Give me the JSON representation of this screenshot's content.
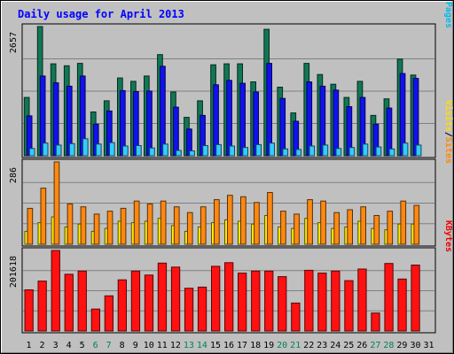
{
  "chart_data": {
    "type": "bar",
    "title": "Daily usage for April 2013",
    "categories": [
      "1",
      "2",
      "3",
      "4",
      "5",
      "6",
      "7",
      "8",
      "9",
      "10",
      "11",
      "12",
      "13",
      "14",
      "15",
      "16",
      "17",
      "18",
      "19",
      "20",
      "21",
      "22",
      "23",
      "24",
      "25",
      "26",
      "27",
      "28",
      "29",
      "30",
      "31"
    ],
    "weekend_days": [
      "6",
      "7",
      "13",
      "14",
      "20",
      "21",
      "27",
      "28"
    ],
    "panels": [
      {
        "id": "hits",
        "ymax_label": "2657",
        "ymax": 2657,
        "legend": [
          {
            "text": "Pages",
            "color": "#00bbee"
          },
          {
            "text": "Files",
            "color": "#0000ee"
          },
          {
            "text": "Hits",
            "color": "#007755"
          }
        ],
        "separator": "/",
        "series": [
          {
            "name": "Hits",
            "color": "#117755",
            "values": [
              1200,
              2657,
              1890,
              1850,
              1900,
              900,
              1130,
              1600,
              1530,
              1640,
              2080,
              1310,
              790,
              1130,
              1870,
              1890,
              1890,
              1520,
              2600,
              1410,
              880,
              1900,
              1670,
              1470,
              1200,
              1530,
              830,
              1170,
              1990,
              1660,
              0
            ]
          },
          {
            "name": "Files",
            "color": "#1111ee",
            "values": [
              820,
              1640,
              1500,
              1430,
              1640,
              650,
              920,
              1340,
              1320,
              1330,
              1840,
              1000,
              550,
              830,
              1460,
              1550,
              1490,
              1310,
              1900,
              1180,
              710,
              1520,
              1430,
              1350,
              1010,
              1200,
              650,
              980,
              1690,
              1590,
              0
            ]
          },
          {
            "name": "Pages",
            "color": "#33ccff",
            "values": [
              150,
              260,
              220,
              250,
              350,
              240,
              270,
              200,
              210,
              160,
              240,
              110,
              100,
              210,
              230,
              200,
              170,
              230,
              260,
              140,
              130,
              200,
              220,
              150,
              170,
              240,
              180,
              140,
              260,
              220,
              0
            ]
          }
        ]
      },
      {
        "id": "sites",
        "ymax_label": "286",
        "ymax": 286,
        "legend": [
          {
            "text": "Sites",
            "color": "#ff8800"
          },
          {
            "text": "Visits",
            "color": "#ffdd00"
          }
        ],
        "separator": "/",
        "series": [
          {
            "name": "Visits",
            "color": "#ffee00",
            "values": [
              45,
              75,
              95,
              60,
              70,
              45,
              55,
              80,
              75,
              80,
              90,
              65,
              45,
              60,
              75,
              85,
              80,
              70,
              100,
              60,
              55,
              90,
              75,
              55,
              60,
              80,
              55,
              50,
              70,
              70,
              0
            ]
          },
          {
            "name": "Sites",
            "color": "#ff8811",
            "values": [
              125,
              195,
              286,
              140,
              130,
              105,
              115,
              125,
              150,
              140,
              150,
              130,
              110,
              130,
              155,
              170,
              165,
              145,
              180,
              115,
              105,
              155,
              150,
              110,
              120,
              130,
              100,
              115,
              150,
              135,
              0
            ]
          }
        ]
      },
      {
        "id": "kbytes",
        "ymax_label": "201618",
        "ymax": 201618,
        "legend": [
          {
            "text": "KBytes",
            "color": "#ee0000"
          }
        ],
        "separator": "",
        "series": [
          {
            "name": "KBytes",
            "color": "#ff1111",
            "values": [
              103000,
              125000,
              201618,
              142000,
              150000,
              55000,
              88000,
              128000,
              150000,
              140000,
              170000,
              160000,
              107000,
              110000,
              162000,
              171000,
              145000,
              150000,
              150000,
              136000,
              70000,
              152000,
              145000,
              150000,
              126000,
              155000,
              45000,
              169000,
              130000,
              165000,
              0
            ]
          }
        ]
      }
    ]
  }
}
